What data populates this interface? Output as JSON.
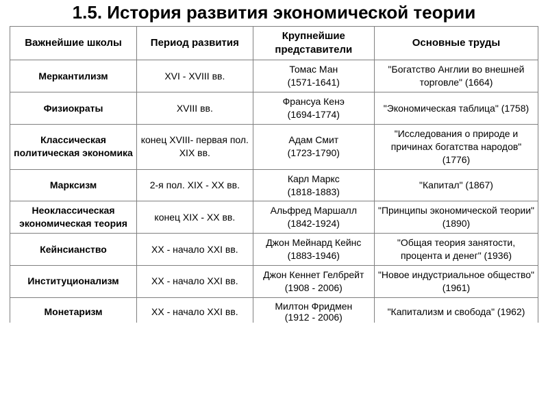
{
  "title": "1.5. История развития экономической теории",
  "title_fontsize": 26,
  "table": {
    "header_fontsize": 15,
    "body_fontsize": 14,
    "border_color": "#7f7f7f",
    "columns": [
      "Важнейшие школы",
      "Период развития",
      "Крупнейшие представители",
      "Основные труды"
    ],
    "rows": [
      {
        "school": "Меркантилизм",
        "period": "XVI - XVIII вв.",
        "rep_name": "Томас Ман",
        "rep_years": "(1571-1641)",
        "works": "\"Богатство Англии во внешней торговле\" (1664)"
      },
      {
        "school": "Физиократы",
        "period": "XVIII вв.",
        "rep_name": "Франсуа Кенэ",
        "rep_years": "(1694-1774)",
        "works": "\"Экономическая таблица\" (1758)"
      },
      {
        "school": "Классическая политическая экономика",
        "period": "конец XVIII- первая пол. XIX вв.",
        "rep_name": "Адам Смит",
        "rep_years": "(1723-1790)",
        "works": "\"Исследования о природе и причинах богатства народов\" (1776)"
      },
      {
        "school": "Марксизм",
        "period": "2-я пол. XIX - XX вв.",
        "rep_name": "Карл Маркс",
        "rep_years": "(1818-1883)",
        "works": "\"Капитал\" (1867)"
      },
      {
        "school": "Неоклассическая экономическая теория",
        "period": "конец XIX - XX вв.",
        "rep_name": "Альфред Маршалл",
        "rep_years": "(1842-1924)",
        "works": "\"Принципы экономической теории\" (1890)"
      },
      {
        "school": "Кейнсианство",
        "period": "XX - начало XXI вв.",
        "rep_name": "Джон Мейнард Кейнс",
        "rep_years": "(1883-1946)",
        "works": "\"Общая теория занятости, процента и денег\" (1936)"
      },
      {
        "school": "Институционализм",
        "period": "XX - начало XXI вв.",
        "rep_name": "Джон Кеннет Гелбрейт",
        "rep_years": "(1908 - 2006)",
        "works": "\"Новое индустриальное общество\" (1961)"
      },
      {
        "school": "Монетаризм",
        "period": "XX - начало XXI вв.",
        "rep_name": "Милтон Фридмен",
        "rep_years": "(1912 - 2006)",
        "works": "\"Капитализм и свобода\" (1962)"
      }
    ]
  }
}
